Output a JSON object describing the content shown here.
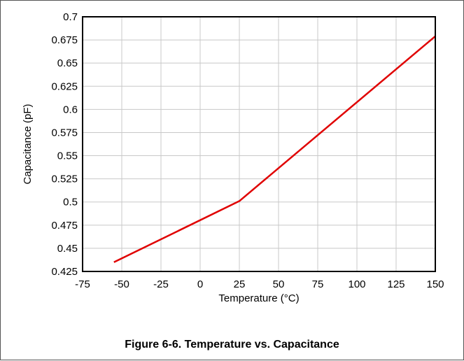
{
  "caption": "Figure 6-6. Temperature vs. Capacitance",
  "chart_data": {
    "type": "line",
    "xlabel": "Temperature (°C)",
    "ylabel": "Capacitance (pF)",
    "xlim": [
      -75,
      150
    ],
    "ylim": [
      0.425,
      0.7
    ],
    "x_ticks": [
      "-75",
      "-50",
      "-25",
      "0",
      "25",
      "50",
      "75",
      "100",
      "125",
      "150"
    ],
    "y_ticks": [
      "0.425",
      "0.45",
      "0.475",
      "0.5",
      "0.525",
      "0.55",
      "0.575",
      "0.6",
      "0.625",
      "0.65",
      "0.675",
      "0.7"
    ],
    "grid": true,
    "series": [
      {
        "color": "#e00000",
        "x": [
          -55,
          25,
          150
        ],
        "y": [
          0.435,
          0.501,
          0.679
        ]
      }
    ]
  }
}
